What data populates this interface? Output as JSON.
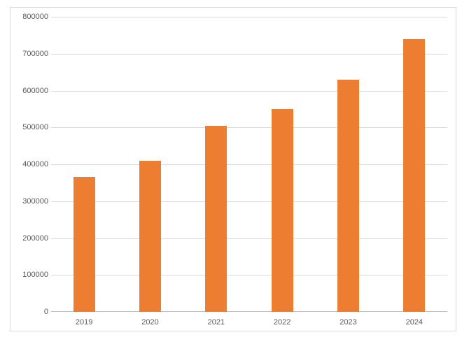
{
  "chart_data": {
    "type": "bar",
    "title": "",
    "xlabel": "",
    "ylabel": "",
    "categories": [
      "2019",
      "2020",
      "2021",
      "2022",
      "2023",
      "2024"
    ],
    "values": [
      365000,
      410000,
      505000,
      550000,
      630000,
      740000
    ],
    "series_name": "",
    "ylim": [
      0,
      800000
    ],
    "ytick_step": 100000,
    "ytick_labels": [
      "0",
      "100000",
      "200000",
      "300000",
      "400000",
      "500000",
      "600000",
      "700000",
      "800000"
    ],
    "grid": true,
    "legend": false,
    "bar_color": "#ED7D31",
    "gridline_color": "#D9D9D9",
    "axis_line_color": "#BFBFBF",
    "tick_label_color": "#595959",
    "frame_border_color": "#D9D9D9",
    "background_color": "#FFFFFF"
  }
}
